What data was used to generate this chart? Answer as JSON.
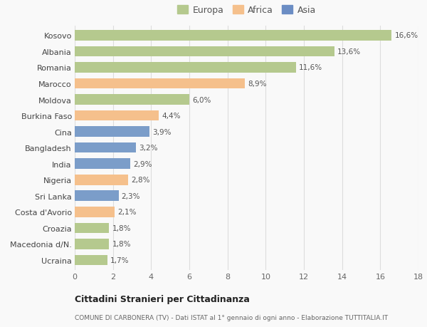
{
  "categories": [
    "Kosovo",
    "Albania",
    "Romania",
    "Marocco",
    "Moldova",
    "Burkina Faso",
    "Cina",
    "Bangladesh",
    "India",
    "Nigeria",
    "Sri Lanka",
    "Costa d'Avorio",
    "Croazia",
    "Macedonia d/N.",
    "Ucraina"
  ],
  "values": [
    16.6,
    13.6,
    11.6,
    8.9,
    6.0,
    4.4,
    3.9,
    3.2,
    2.9,
    2.8,
    2.3,
    2.1,
    1.8,
    1.8,
    1.7
  ],
  "labels": [
    "16,6%",
    "13,6%",
    "11,6%",
    "8,9%",
    "6,0%",
    "4,4%",
    "3,9%",
    "3,2%",
    "2,9%",
    "2,8%",
    "2,3%",
    "2,1%",
    "1,8%",
    "1,8%",
    "1,7%"
  ],
  "colors": [
    "#b5c98e",
    "#b5c98e",
    "#b5c98e",
    "#f5c08c",
    "#b5c98e",
    "#f5c08c",
    "#7b9dc9",
    "#7b9dc9",
    "#7b9dc9",
    "#f5c08c",
    "#7b9dc9",
    "#f5c08c",
    "#b5c98e",
    "#b5c98e",
    "#b5c98e"
  ],
  "legend_labels": [
    "Europa",
    "Africa",
    "Asia"
  ],
  "legend_colors": [
    "#b5c98e",
    "#f5c08c",
    "#6b8dc4"
  ],
  "title": "Cittadini Stranieri per Cittadinanza",
  "subtitle": "COMUNE DI CARBONERA (TV) - Dati ISTAT al 1° gennaio di ogni anno - Elaborazione TUTTITALIA.IT",
  "xlim": [
    0,
    18
  ],
  "xticks": [
    0,
    2,
    4,
    6,
    8,
    10,
    12,
    14,
    16,
    18
  ],
  "background_color": "#f9f9f9",
  "grid_color": "#dddddd",
  "bar_height": 0.65
}
